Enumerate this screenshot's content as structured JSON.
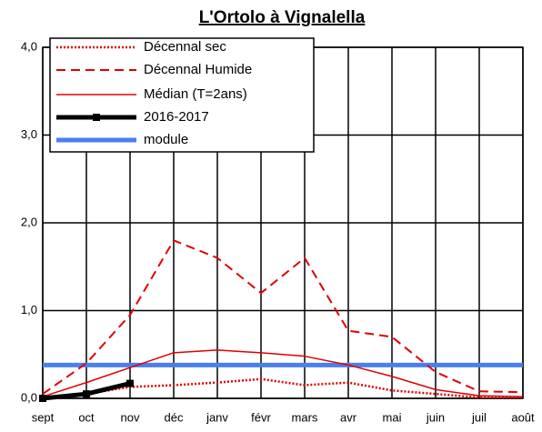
{
  "chart_data": {
    "type": "line",
    "title": "L'Ortolo à Vignalella",
    "categories": [
      "sept",
      "oct",
      "nov",
      "déc",
      "janv",
      "févr",
      "mars",
      "avr",
      "mai",
      "juin",
      "juil",
      "août"
    ],
    "series": [
      {
        "name": "Décennal sec",
        "color": "#e00000",
        "values": [
          0.0,
          0.05,
          0.13,
          0.15,
          0.18,
          0.22,
          0.15,
          0.18,
          0.09,
          0.05,
          0.01,
          0.01
        ]
      },
      {
        "name": "Décennal Humide",
        "color": "#e00000",
        "values": [
          0.05,
          0.4,
          0.95,
          1.8,
          1.6,
          1.2,
          1.6,
          0.77,
          0.7,
          0.3,
          0.08,
          0.07
        ]
      },
      {
        "name": "Médian (T=2ans)",
        "color": "#e00000",
        "values": [
          0.02,
          0.18,
          0.35,
          0.52,
          0.55,
          0.52,
          0.48,
          0.38,
          0.25,
          0.1,
          0.03,
          0.02
        ]
      },
      {
        "name": "2016-2017",
        "color": "#000000",
        "values": [
          0.0,
          0.05,
          0.17,
          null,
          null,
          null,
          null,
          null,
          null,
          null,
          null,
          null
        ]
      },
      {
        "name": "module",
        "color": "#4a7ff0",
        "values": [
          0.38,
          0.38,
          0.38,
          0.38,
          0.38,
          0.38,
          0.38,
          0.38,
          0.38,
          0.38,
          0.38,
          0.38
        ]
      }
    ],
    "ylim": [
      0,
      4
    ],
    "yticks": [
      {
        "value": 0,
        "label": "0,0"
      },
      {
        "value": 1,
        "label": "1,0"
      },
      {
        "value": 2,
        "label": "2,0"
      },
      {
        "value": 3,
        "label": "3,0"
      },
      {
        "value": 4,
        "label": "4,0"
      }
    ],
    "grid": true,
    "legend": "upper left"
  }
}
